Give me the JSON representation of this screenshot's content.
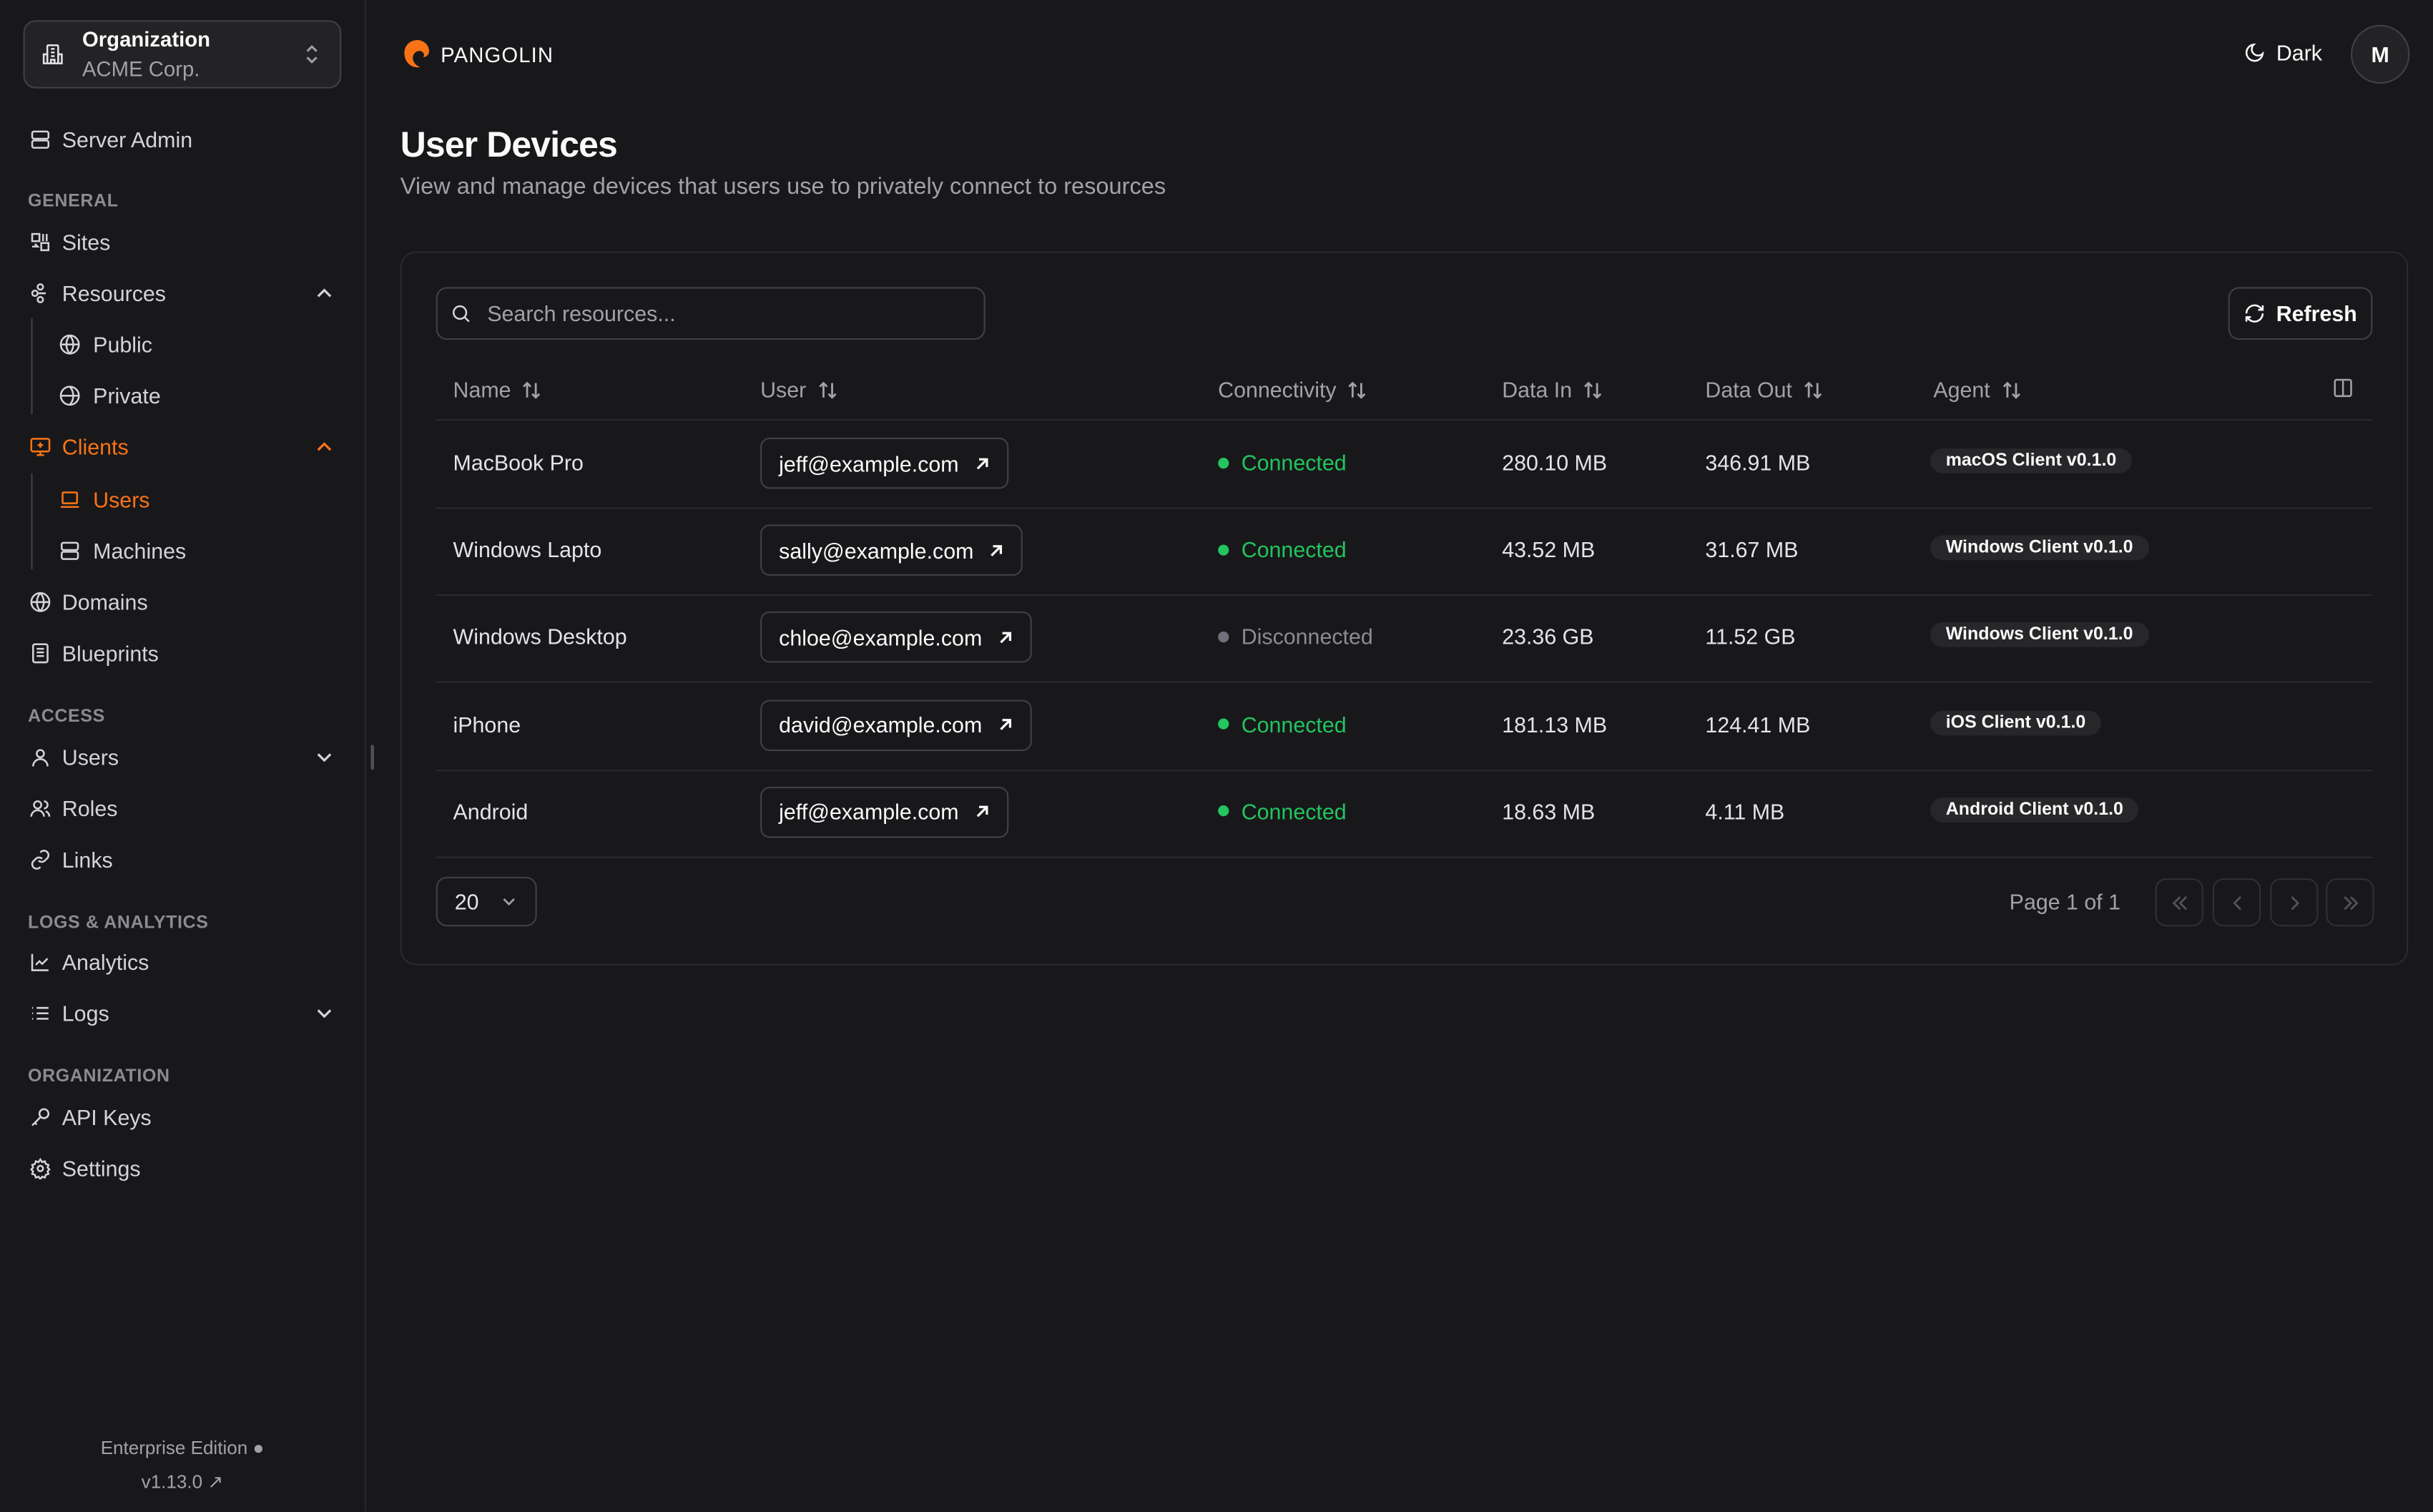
{
  "org": {
    "label": "Organization",
    "name": "ACME Corp."
  },
  "sidebar": {
    "server_admin": "Server Admin",
    "sections": {
      "general": "GENERAL",
      "access": "ACCESS",
      "logs": "LOGS & ANALYTICS",
      "organization": "ORGANIZATION"
    },
    "items": {
      "sites": "Sites",
      "resources": "Resources",
      "public": "Public",
      "private": "Private",
      "clients": "Clients",
      "users": "Users",
      "machines": "Machines",
      "domains": "Domains",
      "blueprints": "Blueprints",
      "access_users": "Users",
      "roles": "Roles",
      "links": "Links",
      "analytics": "Analytics",
      "logs": "Logs",
      "api_keys": "API Keys",
      "settings": "Settings"
    },
    "footer": {
      "edition": "Enterprise Edition",
      "version": "v1.13.0"
    }
  },
  "header": {
    "brand": "PANGOLIN",
    "theme": "Dark",
    "avatar": "M"
  },
  "page": {
    "title": "User Devices",
    "subtitle": "View and manage devices that users use to privately connect to resources"
  },
  "table": {
    "search_placeholder": "Search resources...",
    "refresh": "Refresh",
    "columns": [
      "Name",
      "User",
      "Connectivity",
      "Data In",
      "Data Out",
      "Agent"
    ],
    "rows": [
      {
        "name": "MacBook Pro",
        "user": "jeff@example.com",
        "status": "Connected",
        "data_in": "280.10 MB",
        "data_out": "346.91 MB",
        "agent": "macOS Client v0.1.0"
      },
      {
        "name": "Windows Lapto",
        "user": "sally@example.com",
        "status": "Connected",
        "data_in": "43.52 MB",
        "data_out": "31.67 MB",
        "agent": "Windows Client v0.1.0"
      },
      {
        "name": "Windows Desktop",
        "user": "chloe@example.com",
        "status": "Disconnected",
        "data_in": "23.36 GB",
        "data_out": "11.52 GB",
        "agent": "Windows Client v0.1.0"
      },
      {
        "name": "iPhone",
        "user": "david@example.com",
        "status": "Connected",
        "data_in": "181.13 MB",
        "data_out": "124.41 MB",
        "agent": "iOS Client v0.1.0"
      },
      {
        "name": "Android",
        "user": "jeff@example.com",
        "status": "Connected",
        "data_in": "18.63 MB",
        "data_out": "4.11 MB",
        "agent": "Android Client v0.1.0"
      }
    ],
    "page_size": "20",
    "page_info": "Page 1 of 1"
  },
  "colors": {
    "accent": "#f97316",
    "connected": "#22c55e",
    "disconnected": "#71717a"
  }
}
